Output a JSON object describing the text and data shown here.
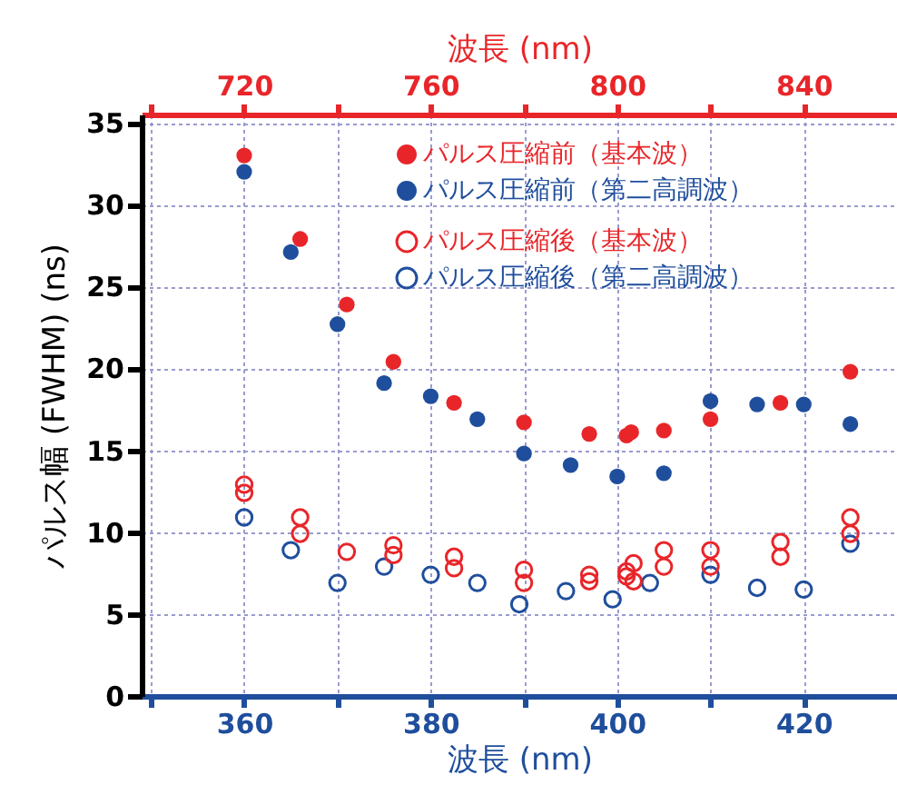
{
  "chart_data": {
    "type": "scatter",
    "xlabel": "波長 (nm)",
    "x2label": "波長 (nm)",
    "ylabel": "パルス幅 (FWHM) (ns)",
    "xlim": [
      349,
      430
    ],
    "xticks": [
      {
        "value": 350,
        "label": null
      },
      360,
      {
        "value": 370,
        "label": null
      },
      380,
      {
        "value": 390,
        "label": null
      },
      400,
      {
        "value": 410,
        "label": null
      },
      420
    ],
    "x2lim": [
      698,
      860
    ],
    "x2ticks": [
      {
        "value": 700,
        "label": null
      },
      720,
      {
        "value": 740,
        "label": null
      },
      760,
      {
        "value": 780,
        "label": null
      },
      800,
      {
        "value": 820,
        "label": null
      },
      840
    ],
    "ylim": [
      0,
      35.5
    ],
    "yticks": [
      0,
      5,
      10,
      15,
      20,
      25,
      30,
      35
    ],
    "grid": true,
    "legend": "top right",
    "marker": "circle",
    "series": [
      {
        "name": "パルス圧縮前（基本波）",
        "color": "#e8262a",
        "axis": "x2",
        "x": [
          720,
          732,
          742,
          752,
          765,
          780,
          794,
          802,
          803,
          810,
          820,
          835,
          850
        ],
        "values": [
          33.0,
          27.9,
          23.9,
          20.4,
          17.9,
          16.7,
          16.0,
          15.9,
          16.1,
          16.2,
          16.9,
          17.9,
          19.8
        ]
      },
      {
        "name": "パルス圧縮前（第二高調波）",
        "color": "#1f4e9c",
        "x": [
          360,
          365,
          370,
          375,
          380,
          385,
          390,
          395,
          400,
          405,
          410,
          415,
          420,
          425
        ],
        "values": [
          32.0,
          27.1,
          22.7,
          19.1,
          18.3,
          16.9,
          14.8,
          14.1,
          13.4,
          13.6,
          18.0,
          17.8,
          17.8,
          16.6
        ]
      },
      {
        "name": "パルス圧縮後（基本波）",
        "color": "#e8262a",
        "axis": "x2",
        "x": [
          720,
          720,
          732,
          732,
          742,
          752,
          752,
          765,
          765,
          780,
          780,
          794,
          794,
          802,
          802,
          803.5,
          803.5,
          810,
          810,
          820,
          820,
          835,
          835,
          850,
          850
        ],
        "values": [
          12.9,
          12.4,
          10.9,
          9.9,
          8.8,
          9.2,
          8.6,
          8.5,
          7.8,
          7.7,
          6.9,
          7.4,
          7.0,
          7.6,
          7.3,
          8.1,
          7.0,
          8.9,
          7.9,
          8.9,
          7.9,
          9.4,
          8.5,
          10.9,
          9.9
        ]
      },
      {
        "name": "パルス圧縮後（第二高調波）",
        "color": "#1f4e9c",
        "x": [
          360,
          365,
          370,
          375,
          380,
          385,
          389.5,
          394.5,
          399.5,
          403.5,
          410,
          415,
          420,
          425
        ],
        "values": [
          10.9,
          8.9,
          6.9,
          7.9,
          7.4,
          6.9,
          5.6,
          6.4,
          5.9,
          6.9,
          7.4,
          6.6,
          6.5,
          9.3
        ]
      }
    ]
  }
}
